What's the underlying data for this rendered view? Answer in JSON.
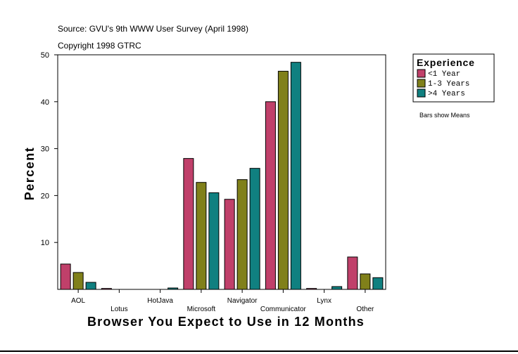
{
  "chart_data": {
    "type": "bar",
    "title": "Source: GVU's 9th WWW User Survey (April 1998)",
    "subtitle": "Copyright 1998 GTRC",
    "xlabel": "Browser You Expect to Use in 12 Months",
    "ylabel": "Percent",
    "ylim": [
      0,
      50
    ],
    "yticks": [
      10,
      20,
      30,
      40,
      50
    ],
    "categories": [
      "AOL",
      "Lotus",
      "HotJava",
      "Microsoft",
      "Navigator",
      "Communicator",
      "Lynx",
      "Other"
    ],
    "legend": {
      "title": "Experience",
      "position": "top-right"
    },
    "note": "Bars show Means",
    "series": [
      {
        "name": "<1 Year",
        "color": "#c0406a",
        "values": [
          5.4,
          0.2,
          0.0,
          27.9,
          19.2,
          40.0,
          0.2,
          6.9
        ]
      },
      {
        "name": "1-3 Years",
        "color": "#80801a",
        "values": [
          3.6,
          0.0,
          0.0,
          22.8,
          23.4,
          46.5,
          0.0,
          3.3
        ]
      },
      {
        "name": ">4 Years",
        "color": "#108080",
        "values": [
          1.5,
          0.0,
          0.3,
          20.6,
          25.8,
          48.4,
          0.6,
          2.5
        ]
      }
    ]
  }
}
